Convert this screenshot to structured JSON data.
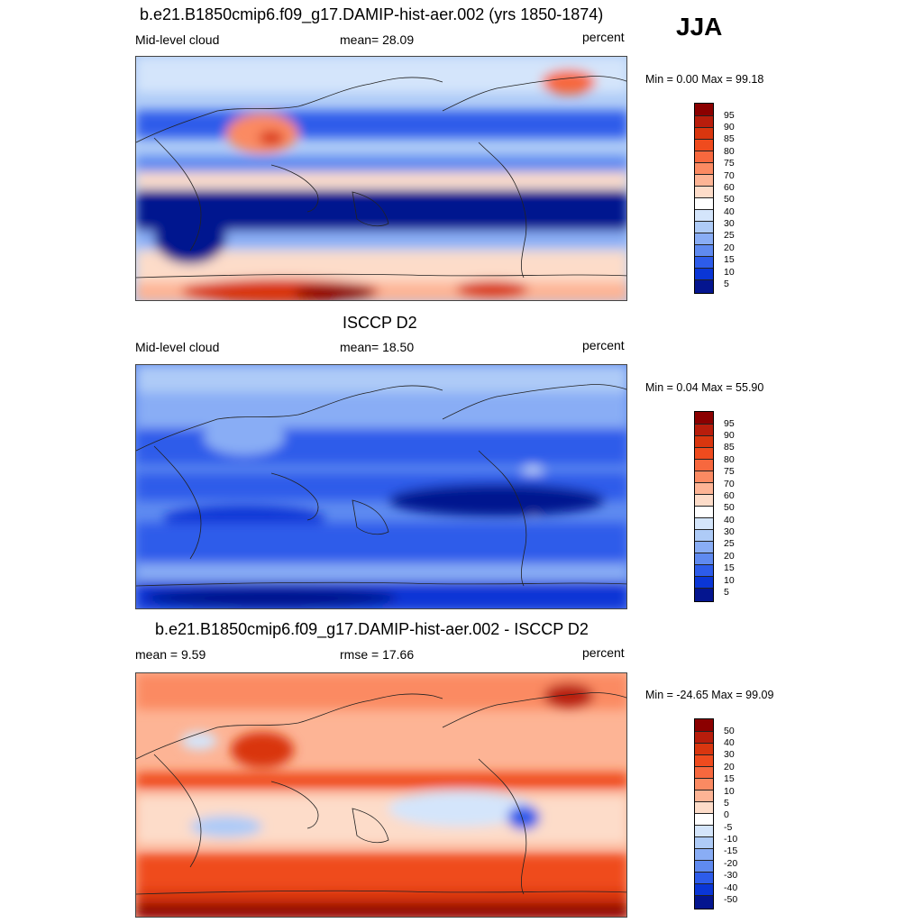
{
  "season": "JJA",
  "panels": [
    {
      "title": "b.e21.B1850cmip6.f09_g17.DAMIP-hist-aer.002 (yrs 1850-1874)",
      "left": "Mid-level cloud",
      "center": "mean=  28.09",
      "right": "percent",
      "minmax": "Min =   0.00 Max =  99.18"
    },
    {
      "title": "ISCCP D2",
      "left": "Mid-level cloud",
      "center": "mean=  18.50",
      "right": "percent",
      "minmax": "Min =   0.04 Max =  55.90"
    },
    {
      "title": "b.e21.B1850cmip6.f09_g17.DAMIP-hist-aer.002 - ISCCP D2",
      "left": "mean =   9.59",
      "center": "rmse =  17.66",
      "right": "percent",
      "minmax": "Min = -24.65 Max =  99.09"
    }
  ],
  "colorbar_abs": {
    "labels": [
      "95",
      "90",
      "85",
      "80",
      "75",
      "70",
      "60",
      "50",
      "40",
      "30",
      "25",
      "20",
      "15",
      "10",
      "5"
    ],
    "colors": [
      "#8b0000",
      "#b81d0c",
      "#d9360f",
      "#ef4b1e",
      "#f7683e",
      "#fb8a62",
      "#fdb495",
      "#fddcc9",
      "#ffffff",
      "#d4e5fb",
      "#aecbf7",
      "#89adf5",
      "#5f8af0",
      "#2d5cea",
      "#0a36d6",
      "#04158f"
    ]
  },
  "colorbar_diff": {
    "labels": [
      "50",
      "40",
      "30",
      "20",
      "15",
      "10",
      "5",
      "0",
      "-5",
      "-10",
      "-15",
      "-20",
      "-30",
      "-40",
      "-50"
    ],
    "colors": [
      "#8b0000",
      "#b81d0c",
      "#d9360f",
      "#ef4b1e",
      "#f7683e",
      "#fb8a62",
      "#fdb495",
      "#fddcc9",
      "#ffffff",
      "#d4e5fb",
      "#aecbf7",
      "#89adf5",
      "#5f8af0",
      "#2d5cea",
      "#0a36d6",
      "#04158f"
    ]
  }
}
